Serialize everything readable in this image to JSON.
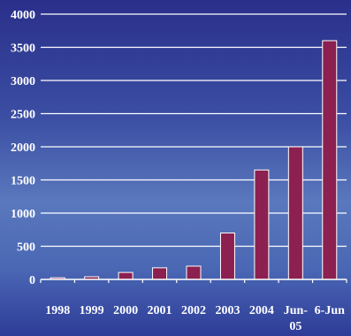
{
  "chart_data": {
    "type": "bar",
    "categories": [
      "1998",
      "1999",
      "2000",
      "2001",
      "2002",
      "2003",
      "2004",
      "Jun-05",
      "6-Jun"
    ],
    "values": [
      25,
      40,
      105,
      175,
      200,
      700,
      1650,
      2000,
      3600
    ],
    "ylim": [
      0,
      4000
    ],
    "yticks": [
      0,
      500,
      1000,
      1500,
      2000,
      2500,
      3000,
      3500,
      4000
    ],
    "grid": true,
    "legend": "none",
    "bar_color": "#8c2050",
    "grid_color": "#ffffff",
    "text_color": "#ffffff"
  }
}
